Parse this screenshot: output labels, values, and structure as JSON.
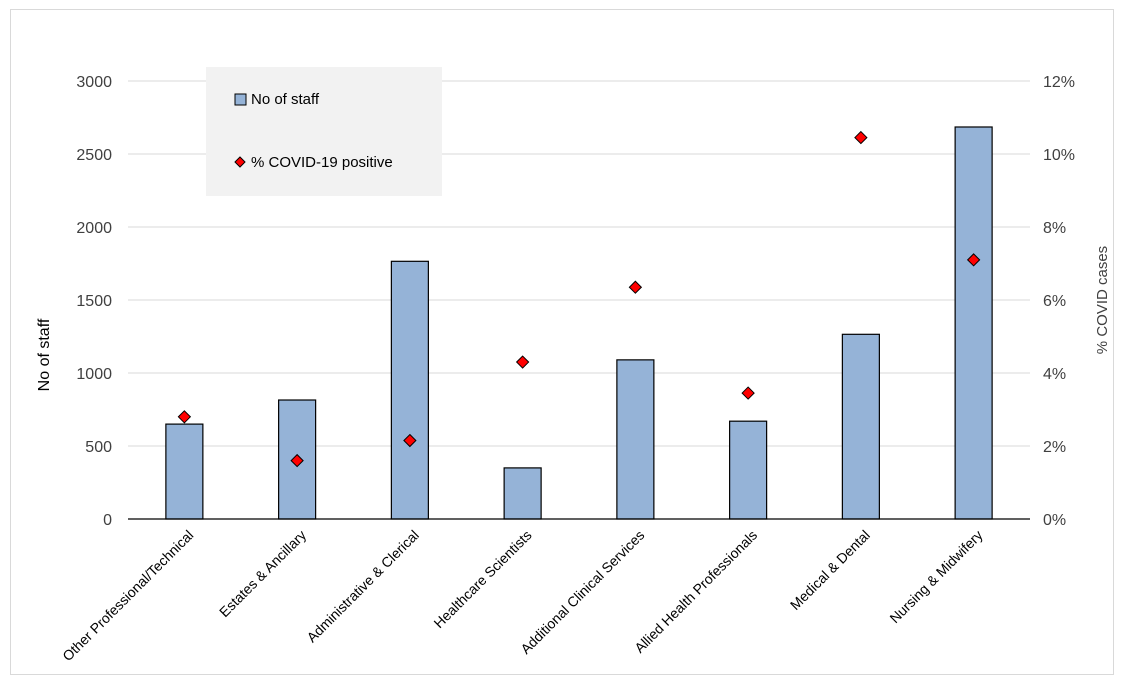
{
  "chart_data": {
    "type": "bar",
    "categories": [
      "Other Professional/Technical",
      "Estates & Ancillary",
      "Administrative & Clerical",
      "Healthcare Scientists",
      "Additional Clinical Services",
      "Allied Health Professionals",
      "Medical & Dental",
      "Nursing & Midwifery"
    ],
    "series": [
      {
        "name": "No of staff",
        "type": "bar",
        "axis": "left",
        "values": [
          650,
          815,
          1765,
          350,
          1090,
          670,
          1265,
          2685
        ]
      },
      {
        "name": "% COVID-19 positive",
        "type": "scatter",
        "axis": "right",
        "values": [
          2.8,
          1.6,
          2.15,
          4.3,
          6.35,
          3.45,
          10.45,
          7.1
        ]
      }
    ],
    "ylabel": "No of staff",
    "y2label": "% COVID cases",
    "ylim": [
      0,
      3000
    ],
    "y2lim": [
      0,
      12
    ],
    "yticks": [
      "0",
      "500",
      "1000",
      "1500",
      "2000",
      "2500",
      "3000"
    ],
    "y2ticks": [
      "0%",
      "2%",
      "4%",
      "6%",
      "8%",
      "10%",
      "12%"
    ],
    "grid": true,
    "legend_position": "top-left"
  },
  "colors": {
    "bar_fill": "#95b3d7",
    "bar_stroke": "#000000",
    "marker_fill": "#ff0000",
    "marker_stroke": "#000000",
    "legend_bg": "#f2f2f2",
    "grid": "#d9d9d9",
    "text": "#404040"
  }
}
